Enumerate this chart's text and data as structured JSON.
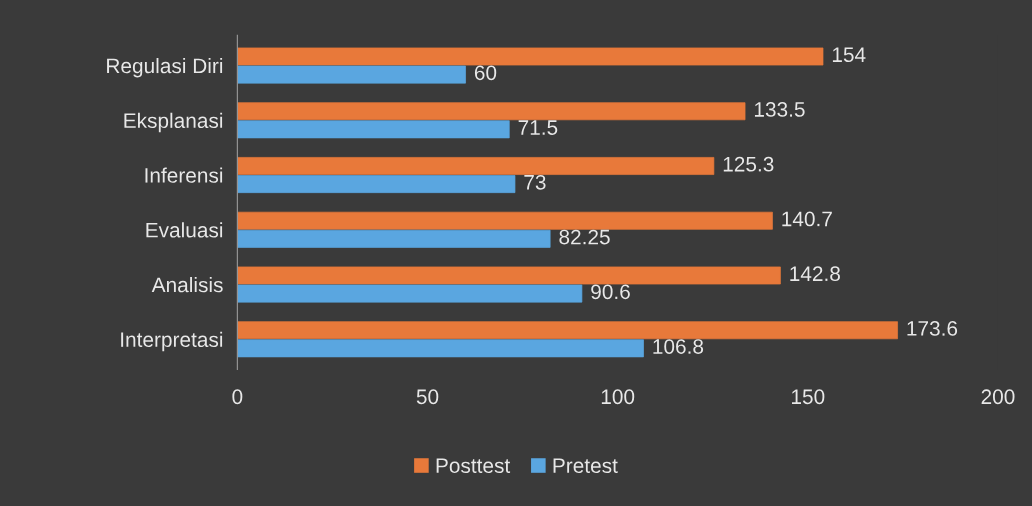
{
  "chart_data": {
    "type": "bar",
    "orientation": "horizontal",
    "categories": [
      "Regulasi Diri",
      "Eksplanasi",
      "Inferensi",
      "Evaluasi",
      "Analisis",
      "Interpretasi"
    ],
    "series": [
      {
        "name": "Posttest",
        "color": "#e8793a",
        "values": [
          154,
          133.5,
          125.3,
          140.7,
          142.8,
          173.6
        ]
      },
      {
        "name": "Pretest",
        "color": "#5aa6e0",
        "values": [
          60,
          71.5,
          73,
          82.25,
          90.6,
          106.8
        ]
      }
    ],
    "xlim": [
      0,
      200
    ],
    "xticks": [
      0,
      50,
      100,
      150,
      200
    ],
    "data_labels": true,
    "legend": "bottom",
    "grid": false
  }
}
